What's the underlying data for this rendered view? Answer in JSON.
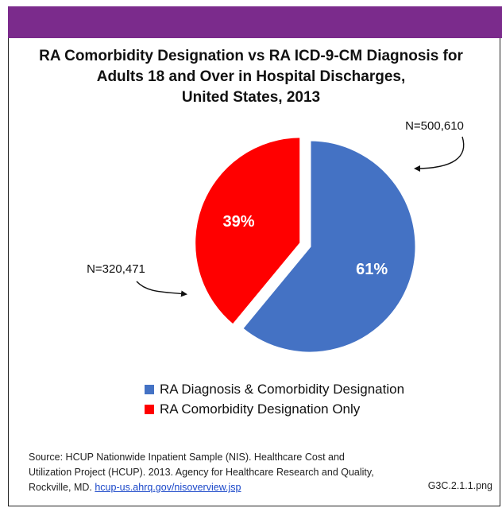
{
  "chart_data": {
    "type": "pie",
    "title_lines": [
      "RA Comorbidity Designation vs RA ICD-9-CM Diagnosis for",
      "Adults 18 and Over in Hospital Discharges,",
      "United States, 2013"
    ],
    "slices": [
      {
        "name": "RA Diagnosis & Comorbidity Designation",
        "value": 61,
        "label": "61%",
        "n_label": "N=500,610",
        "color": "#4472c4"
      },
      {
        "name": "RA Comorbidity Designation Only",
        "value": 39,
        "label": "39%",
        "n_label": "N=320,471",
        "color": "#ff0000"
      }
    ],
    "exploded_slice": 1,
    "legend_position": "bottom"
  },
  "footer": {
    "source_text": "Source: HCUP Nationwide Inpatient Sample (NIS). Healthcare Cost and Utilization Project (HCUP). 2013. Agency for Healthcare Research and Quality, Rockville, MD.",
    "source_link": "hcup-us.ahrq.gov/nisoverview.jsp",
    "image_name": "G3C.2.1.1.png"
  },
  "colors": {
    "header_band": "#7b2b8c"
  }
}
